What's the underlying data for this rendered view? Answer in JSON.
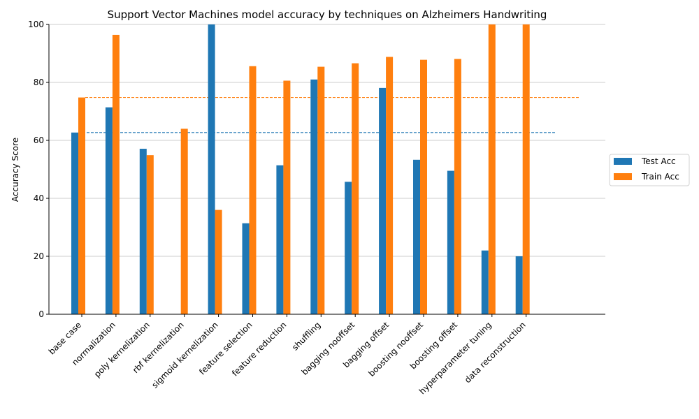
{
  "chart_data": {
    "type": "bar",
    "title": "Support Vector Machines model accuracy by techniques on Alzheimers Handwriting",
    "xlabel": "",
    "ylabel": "Accuracy Score",
    "ylim": [
      0,
      100
    ],
    "yticks": [
      0,
      20,
      40,
      60,
      80,
      100
    ],
    "grid": "horizontal",
    "legend_position": "right",
    "categories": [
      "base case",
      "normalization",
      "poly kernelization",
      "rbf kernelization",
      "sigmoid kernelization",
      "feature selection",
      "feature reduction",
      "shuffling",
      "bagging nooffset",
      "bagging offset",
      "boosting nooffset",
      "boosting offset",
      "hyperparameter tuning",
      "data reconstruction"
    ],
    "series": [
      {
        "name": "Test Acc",
        "color": "#1f77b4",
        "values": [
          62.7,
          71.4,
          57.1,
          0,
          100,
          31.4,
          51.4,
          81.0,
          45.7,
          78.1,
          53.3,
          49.5,
          22.0,
          20.0
        ]
      },
      {
        "name": "Train Acc",
        "color": "#ff7f0e",
        "values": [
          74.8,
          96.4,
          54.9,
          64.0,
          36.0,
          85.6,
          80.6,
          85.4,
          86.6,
          88.8,
          87.8,
          88.1,
          100,
          100
        ]
      }
    ],
    "reference_lines": [
      {
        "series": "Test Acc",
        "value": 62.7,
        "style": "dashed",
        "color": "#1f77b4"
      },
      {
        "series": "Train Acc",
        "value": 74.8,
        "style": "dashed",
        "color": "#ff7f0e"
      }
    ]
  }
}
